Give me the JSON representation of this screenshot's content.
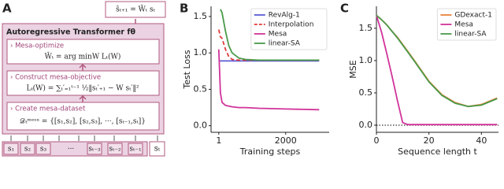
{
  "diagram": {
    "label": "A",
    "output": "ŝₜ₊₁ = Ŵₜ sₜ",
    "title": "Autoregressive Transformer fθ",
    "steps": [
      {
        "name": "› Mesa-optimize",
        "formula": "Ŵₜ = arg minW Lₜ(W)"
      },
      {
        "name": "› Construct mesa-objective",
        "formula": "Lₜ(W) = ∑ₜ′₌₁ᵗ⁻¹ ½‖sₜ′₊₁ − W sₜ′‖²"
      },
      {
        "name": "› Create mesa-dataset",
        "formula": "𝒟ₜᵐᵉˢᵃ = {[s₁,s₂], [s₂,s₃], ···, [sₜ₋₁,sₜ]}"
      }
    ],
    "tokens": [
      "s₁",
      "s₂",
      "s₃",
      "···",
      "sₜ₋₃",
      "sₜ₋₂",
      "sₜ₋₁"
    ],
    "last_token": "sₜ"
  },
  "chart_data": [
    {
      "type": "line",
      "label": "B",
      "x_label": "Training steps",
      "y_label": "Test Loss",
      "x": [
        1,
        50,
        100,
        200,
        300,
        400,
        600,
        800,
        1200,
        2000,
        3000
      ],
      "series": [
        {
          "name": "RevAlg-1",
          "color": "#5b5bd6",
          "style": "solid",
          "values": [
            0.89,
            0.89,
            0.89,
            0.89,
            0.89,
            0.89,
            0.89,
            0.89,
            0.89,
            0.89,
            0.89
          ]
        },
        {
          "name": "Interpolation",
          "color": "#e03a3a",
          "style": "dashed",
          "values": [
            1.32,
            1.22,
            1.2,
            1.05,
            0.95,
            0.91,
            0.9,
            0.9,
            0.9,
            0.9,
            0.9
          ]
        },
        {
          "name": "Mesa",
          "color": "#d1339a",
          "style": "solid",
          "values": [
            1.05,
            0.45,
            0.32,
            0.28,
            0.27,
            0.26,
            0.25,
            0.25,
            0.24,
            0.23,
            0.22
          ]
        },
        {
          "name": "linear-SA",
          "color": "#4a9a4a",
          "style": "solid",
          "values": [
            null,
            1.6,
            1.55,
            1.3,
            1.1,
            1.0,
            0.93,
            0.91,
            0.9,
            0.9,
            0.9
          ]
        }
      ],
      "xlim": [
        -230,
        3300
      ],
      "xticks": [
        1,
        2000
      ],
      "ylim": [
        -0.09,
        1.64
      ],
      "yticks": [
        {
          "value": 0,
          "label": "0.0"
        },
        {
          "value": 0.5,
          "label": "0.5"
        },
        {
          "value": 1,
          "label": "1.0"
        },
        {
          "value": 1.5,
          "label": "1.5"
        }
      ],
      "legend": "upper right"
    },
    {
      "type": "line",
      "label": "C",
      "x_label": "Sequence length t",
      "y_label": "MSE",
      "x": [
        0,
        2,
        4,
        6,
        8,
        10,
        12,
        15,
        20,
        25,
        30,
        35,
        40,
        46
      ],
      "series": [
        {
          "name": "GDexact-1",
          "color": "#e8843a",
          "style": "solid",
          "values": [
            1.7,
            1.63,
            1.55,
            1.45,
            1.36,
            1.25,
            1.14,
            0.97,
            0.68,
            0.47,
            0.35,
            0.29,
            0.32,
            0.42
          ]
        },
        {
          "name": "Mesa",
          "color": "#d1339a",
          "style": "solid",
          "values": [
            1.7,
            1.43,
            1.1,
            0.75,
            0.38,
            0.04,
            0.01,
            0.01,
            0.01,
            0.01,
            0.01,
            0.01,
            0.01,
            0.01
          ]
        },
        {
          "name": "linear-SA",
          "color": "#4a9a4a",
          "style": "solid",
          "values": [
            1.7,
            1.63,
            1.55,
            1.45,
            1.35,
            1.24,
            1.13,
            0.96,
            0.67,
            0.46,
            0.34,
            0.29,
            0.31,
            0.41
          ]
        }
      ],
      "xlim": [
        0,
        46.5
      ],
      "xticks": [
        0,
        20,
        40
      ],
      "ylim": [
        -0.11,
        1.84
      ],
      "yticks": [
        {
          "value": 0,
          "label": "0.0"
        },
        {
          "value": 0.5,
          "label": "0.5"
        },
        {
          "value": 1,
          "label": "1.0"
        },
        {
          "value": 1.5,
          "label": "1.5"
        }
      ],
      "hline": 0,
      "legend": "upper right"
    }
  ]
}
